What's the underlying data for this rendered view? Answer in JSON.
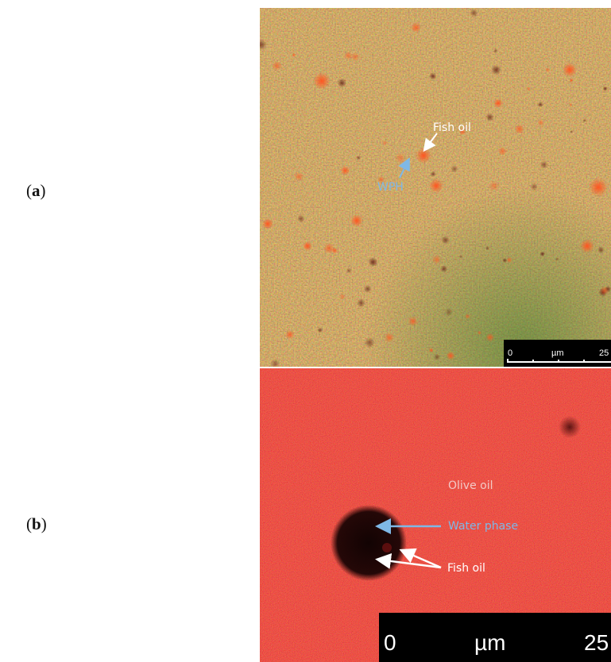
{
  "panels": [
    {
      "label_open": "(",
      "label_letter": "a",
      "label_close": ")",
      "annotations": {
        "fish_oil": "Fish oil",
        "wph": "WPH"
      },
      "scale_bar": {
        "start": "0",
        "unit": "µm",
        "end": "25"
      },
      "colors": {
        "base": "#8a5a2e",
        "red_blob": "#ff4a1a",
        "green_tint": "#3f7a2a",
        "dark_blob": "#6b1f1f"
      }
    },
    {
      "label_open": "(",
      "label_letter": "b",
      "label_close": ")",
      "annotations": {
        "olive_oil": "Olive oil",
        "water_phase": "Water phase",
        "fish_oil": "Fish oil"
      },
      "scale_bar": {
        "start": "0",
        "unit": "µm",
        "end": "25"
      },
      "colors": {
        "base": "#e0140c",
        "droplet": "#140404"
      }
    }
  ],
  "annotation_colors": {
    "white": "#ffffff",
    "blue": "#7fb8e6"
  }
}
